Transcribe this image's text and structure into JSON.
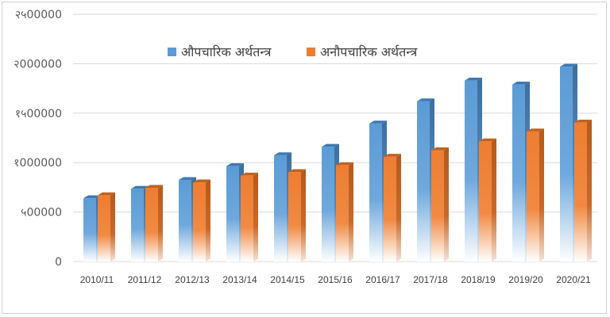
{
  "chart_data": {
    "type": "bar",
    "categories": [
      "2010/11",
      "2011/12",
      "2012/13",
      "2013/14",
      "2014/15",
      "2015/16",
      "2016/17",
      "2017/18",
      "2018/19",
      "2019/20",
      "2020/21"
    ],
    "series": [
      {
        "name": "औपचारिक अर्थतन्त्र",
        "color": "#5b9bd5",
        "values": [
          640000,
          735000,
          825000,
          965000,
          1075000,
          1160000,
          1395000,
          1620000,
          1830000,
          1790000,
          1970000
        ]
      },
      {
        "name": "अनौपचारिक अर्थतन्त्र",
        "color": "#ed7d31",
        "values": [
          670000,
          745000,
          800000,
          870000,
          905000,
          975000,
          1060000,
          1125000,
          1215000,
          1315000,
          1405000
        ]
      }
    ],
    "ylim": [
      0,
      2500000
    ],
    "yticks": [
      {
        "value": 0,
        "label": "0"
      },
      {
        "value": 500000,
        "label": "५00000"
      },
      {
        "value": 1000000,
        "label": "१000000"
      },
      {
        "value": 1500000,
        "label": "१५00000"
      },
      {
        "value": 2000000,
        "label": "२000000"
      },
      {
        "value": 2500000,
        "label": "२५00000"
      }
    ],
    "grid": true,
    "legend_position": "top-center",
    "title": "",
    "xlabel": "",
    "ylabel": ""
  }
}
